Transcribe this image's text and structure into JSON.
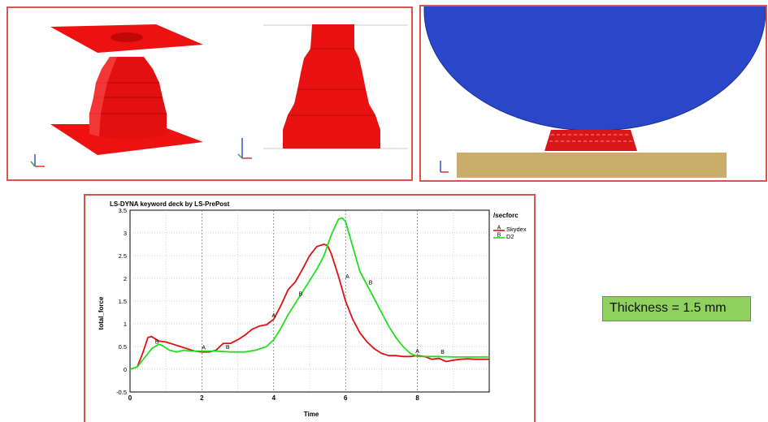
{
  "colors": {
    "part": "#ee1111",
    "sphere": "#2a47c9",
    "base": "#c9ad6a",
    "panel_border": "#d9534f",
    "label_bg": "#8ed15c"
  },
  "thickness_label": "Thickness = 1.5 mm",
  "chart_data": {
    "type": "line",
    "title": "LS-DYNA keyword deck by LS-PrePost",
    "subtitle": "/secforc",
    "xlabel": "Time",
    "ylabel": "total_force",
    "xlim": [
      0,
      10
    ],
    "ylim": [
      -0.5,
      3.5
    ],
    "x_ticks": [
      "0",
      "2",
      "4",
      "6",
      "8"
    ],
    "y_ticks": [
      "-0.5",
      "0",
      "0.5",
      "1",
      "1.5",
      "2",
      "2.5",
      "3",
      "3.5"
    ],
    "grid": true,
    "legend_position": "top-right",
    "series": [
      {
        "name": "Skydex",
        "marker": "A",
        "color": "#e01010",
        "x": [
          0,
          0.2,
          0.35,
          0.5,
          0.6,
          0.8,
          1.0,
          1.2,
          1.4,
          1.6,
          1.8,
          2.0,
          2.2,
          2.4,
          2.5,
          2.6,
          2.8,
          3.0,
          3.2,
          3.4,
          3.6,
          3.8,
          4.0,
          4.2,
          4.4,
          4.6,
          4.8,
          5.0,
          5.2,
          5.4,
          5.5,
          5.6,
          5.8,
          6.0,
          6.2,
          6.4,
          6.6,
          6.8,
          7.0,
          7.2,
          7.4,
          7.6,
          7.8,
          8.0,
          8.2,
          8.4,
          8.6,
          8.8,
          9.0,
          9.2,
          9.4,
          9.6,
          9.8,
          10.0
        ],
        "y": [
          0,
          0.05,
          0.35,
          0.7,
          0.72,
          0.62,
          0.6,
          0.55,
          0.5,
          0.45,
          0.4,
          0.38,
          0.38,
          0.42,
          0.5,
          0.57,
          0.57,
          0.65,
          0.75,
          0.88,
          0.95,
          0.98,
          1.1,
          1.4,
          1.75,
          1.92,
          2.2,
          2.5,
          2.7,
          2.75,
          2.72,
          2.55,
          2.05,
          1.5,
          1.1,
          0.8,
          0.6,
          0.45,
          0.35,
          0.3,
          0.3,
          0.28,
          0.28,
          0.3,
          0.28,
          0.22,
          0.24,
          0.17,
          0.2,
          0.22,
          0.23,
          0.22,
          0.22,
          0.22
        ]
      },
      {
        "name": "D2",
        "marker": "B",
        "color": "#22dd22",
        "x": [
          0,
          0.2,
          0.4,
          0.6,
          0.8,
          0.9,
          1.1,
          1.3,
          1.5,
          1.7,
          2.0,
          2.4,
          2.8,
          3.2,
          3.5,
          3.8,
          4.0,
          4.2,
          4.4,
          4.6,
          4.8,
          5.0,
          5.2,
          5.4,
          5.6,
          5.8,
          5.9,
          6.0,
          6.2,
          6.4,
          6.6,
          6.8,
          7.0,
          7.2,
          7.4,
          7.6,
          7.8,
          8.0,
          8.2,
          8.5,
          9.0,
          9.5,
          10.0
        ],
        "y": [
          0,
          0.05,
          0.25,
          0.45,
          0.55,
          0.52,
          0.42,
          0.38,
          0.42,
          0.4,
          0.4,
          0.4,
          0.38,
          0.38,
          0.42,
          0.5,
          0.65,
          0.9,
          1.2,
          1.45,
          1.7,
          1.95,
          2.2,
          2.5,
          2.95,
          3.3,
          3.33,
          3.25,
          2.7,
          2.15,
          1.85,
          1.55,
          1.25,
          0.95,
          0.7,
          0.5,
          0.35,
          0.28,
          0.28,
          0.28,
          0.27,
          0.27,
          0.27
        ]
      }
    ],
    "point_labels": [
      {
        "series": 0,
        "text": "A",
        "x": 2.05,
        "y": 0.44
      },
      {
        "series": 0,
        "text": "A",
        "x": 4.0,
        "y": 1.14
      },
      {
        "series": 0,
        "text": "A",
        "x": 6.05,
        "y": 2.0
      },
      {
        "series": 0,
        "text": "A",
        "x": 8.0,
        "y": 0.36
      },
      {
        "series": 1,
        "text": "B",
        "x": 0.75,
        "y": 0.56
      },
      {
        "series": 1,
        "text": "B",
        "x": 2.72,
        "y": 0.45
      },
      {
        "series": 1,
        "text": "B",
        "x": 4.75,
        "y": 1.62
      },
      {
        "series": 1,
        "text": "B",
        "x": 6.7,
        "y": 1.87
      },
      {
        "series": 1,
        "text": "B",
        "x": 8.7,
        "y": 0.34
      }
    ]
  }
}
